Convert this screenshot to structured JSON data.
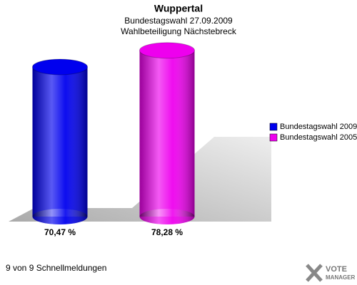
{
  "chart_data": {
    "type": "cylinder",
    "title": "Wuppertal",
    "subtitle": [
      "Bundestagswahl 27.09.2009",
      "Wahlbeteiligung Nächstebreck"
    ],
    "series": [
      {
        "name": "Bundestagswahl 2009",
        "color": "#0000ee",
        "values": [
          70.47
        ],
        "value_labels": [
          "70,47 %"
        ]
      },
      {
        "name": "Bundestagswahl 2005",
        "color": "#ee00ee",
        "values": [
          78.28
        ],
        "value_labels": [
          "78,28 %"
        ]
      }
    ],
    "legend": "right"
  },
  "footer_note": "9 von 9 Schnellmeldungen",
  "brand": {
    "line1": "VOTE",
    "line2": "MANAGER"
  }
}
